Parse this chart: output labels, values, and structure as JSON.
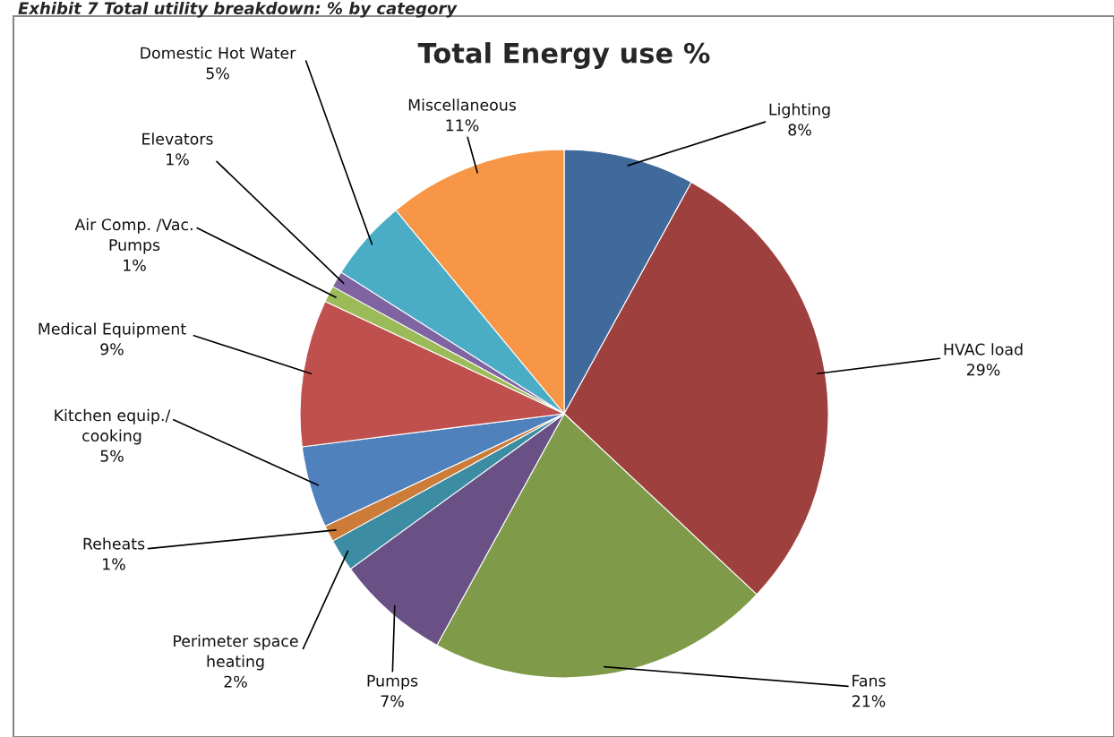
{
  "chart_data": {
    "type": "pie",
    "title": "Total Energy use %",
    "annotations": [
      "Exhibit 7 Total utility breakdown: % by category"
    ],
    "categories": [
      "Lighting",
      "HVAC load",
      "Fans",
      "Pumps",
      "Perimeter space heating",
      "Reheats",
      "Kitchen equip./ cooking",
      "Medical Equipment",
      "Air Comp. /Vac. Pumps",
      "Elevators",
      "Domestic Hot Water",
      "Miscellaneous"
    ],
    "values": [
      8,
      29,
      21,
      7,
      2,
      1,
      5,
      9,
      1,
      1,
      5,
      11
    ],
    "colors": [
      "#40699c",
      "#9e413e",
      "#7f9a48",
      "#695185",
      "#3c8da3",
      "#cc7b38",
      "#4f81bd",
      "#c0504d",
      "#9bbb59",
      "#8064a2",
      "#4bacc6",
      "#f79646"
    ],
    "value_labels": [
      "8%",
      "29%",
      "21%",
      "7%",
      "2%",
      "1%",
      "5%",
      "9%",
      "1%",
      "1%",
      "5%",
      "11%"
    ],
    "legend": false
  }
}
